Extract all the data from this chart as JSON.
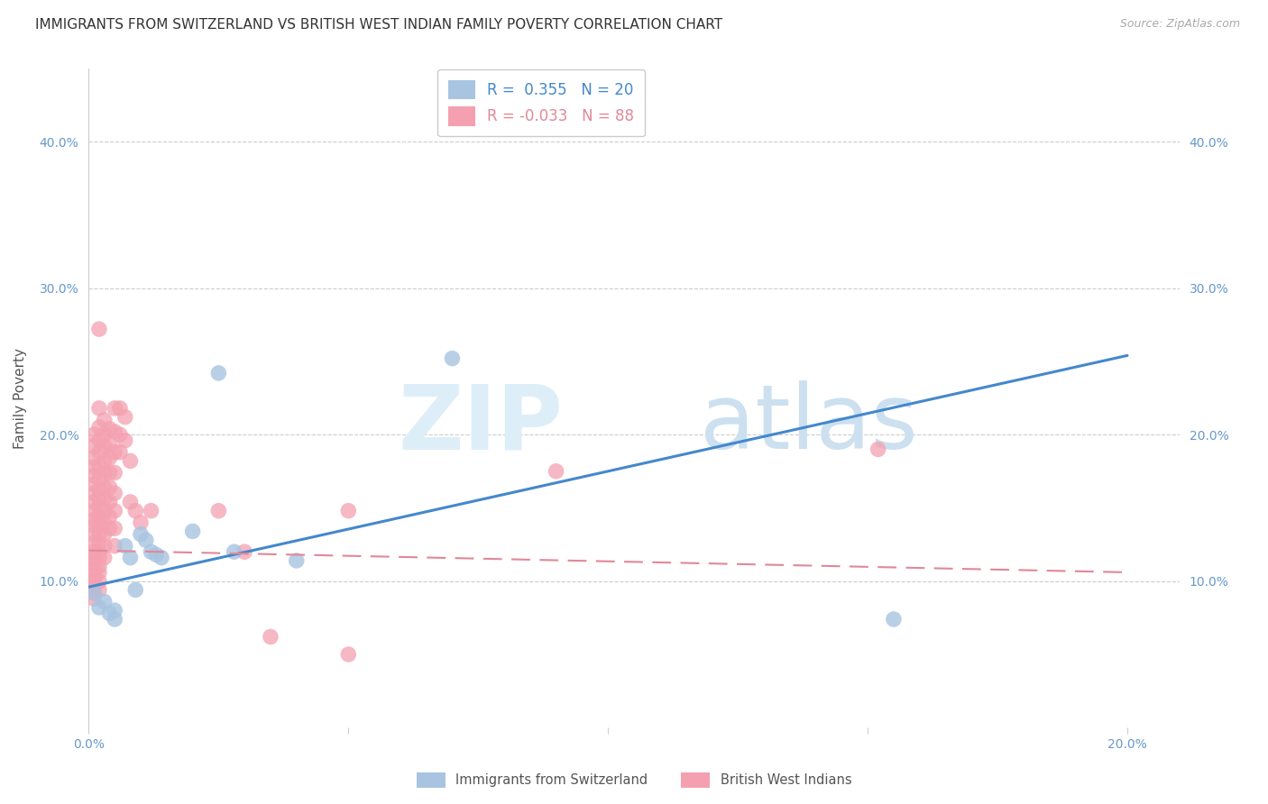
{
  "title": "IMMIGRANTS FROM SWITZERLAND VS BRITISH WEST INDIAN FAMILY POVERTY CORRELATION CHART",
  "source": "Source: ZipAtlas.com",
  "ylabel": "Family Poverty",
  "xlim": [
    0.0,
    0.21
  ],
  "ylim": [
    0.0,
    0.45
  ],
  "yticks": [
    0.1,
    0.2,
    0.3,
    0.4
  ],
  "ytick_labels": [
    "10.0%",
    "20.0%",
    "30.0%",
    "40.0%"
  ],
  "xticks": [
    0.0,
    0.05,
    0.1,
    0.15,
    0.2
  ],
  "xtick_labels": [
    "0.0%",
    "",
    "",
    "",
    "20.0%"
  ],
  "r_switzerland": 0.355,
  "n_switzerland": 20,
  "r_bwi": -0.033,
  "n_bwi": 88,
  "background_color": "#ffffff",
  "grid_color": "#cccccc",
  "tick_color": "#6699cc",
  "blue_scatter_color": "#a8c4e0",
  "pink_scatter_color": "#f4a0b0",
  "blue_line_color": "#4488cc",
  "pink_line_color": "#e08898",
  "legend_label_swiss": "Immigrants from Switzerland",
  "legend_label_bwi": "British West Indians",
  "blue_points": [
    [
      0.001,
      0.092
    ],
    [
      0.002,
      0.082
    ],
    [
      0.003,
      0.086
    ],
    [
      0.004,
      0.078
    ],
    [
      0.005,
      0.074
    ],
    [
      0.005,
      0.08
    ],
    [
      0.007,
      0.124
    ],
    [
      0.008,
      0.116
    ],
    [
      0.009,
      0.094
    ],
    [
      0.01,
      0.132
    ],
    [
      0.011,
      0.128
    ],
    [
      0.012,
      0.12
    ],
    [
      0.013,
      0.118
    ],
    [
      0.014,
      0.116
    ],
    [
      0.02,
      0.134
    ],
    [
      0.025,
      0.242
    ],
    [
      0.028,
      0.12
    ],
    [
      0.04,
      0.114
    ],
    [
      0.07,
      0.252
    ],
    [
      0.155,
      0.074
    ]
  ],
  "pink_points": [
    [
      0.001,
      0.2
    ],
    [
      0.001,
      0.192
    ],
    [
      0.001,
      0.184
    ],
    [
      0.001,
      0.178
    ],
    [
      0.001,
      0.172
    ],
    [
      0.001,
      0.166
    ],
    [
      0.001,
      0.16
    ],
    [
      0.001,
      0.154
    ],
    [
      0.001,
      0.148
    ],
    [
      0.001,
      0.142
    ],
    [
      0.001,
      0.138
    ],
    [
      0.001,
      0.132
    ],
    [
      0.001,
      0.126
    ],
    [
      0.001,
      0.12
    ],
    [
      0.001,
      0.116
    ],
    [
      0.001,
      0.112
    ],
    [
      0.001,
      0.108
    ],
    [
      0.001,
      0.104
    ],
    [
      0.001,
      0.1
    ],
    [
      0.001,
      0.096
    ],
    [
      0.001,
      0.092
    ],
    [
      0.001,
      0.088
    ],
    [
      0.002,
      0.272
    ],
    [
      0.002,
      0.218
    ],
    [
      0.002,
      0.205
    ],
    [
      0.002,
      0.196
    ],
    [
      0.002,
      0.188
    ],
    [
      0.002,
      0.178
    ],
    [
      0.002,
      0.17
    ],
    [
      0.002,
      0.162
    ],
    [
      0.002,
      0.156
    ],
    [
      0.002,
      0.15
    ],
    [
      0.002,
      0.144
    ],
    [
      0.002,
      0.138
    ],
    [
      0.002,
      0.132
    ],
    [
      0.002,
      0.126
    ],
    [
      0.002,
      0.12
    ],
    [
      0.002,
      0.116
    ],
    [
      0.002,
      0.11
    ],
    [
      0.002,
      0.106
    ],
    [
      0.002,
      0.1
    ],
    [
      0.002,
      0.094
    ],
    [
      0.003,
      0.21
    ],
    [
      0.003,
      0.2
    ],
    [
      0.003,
      0.192
    ],
    [
      0.003,
      0.182
    ],
    [
      0.003,
      0.174
    ],
    [
      0.003,
      0.164
    ],
    [
      0.003,
      0.156
    ],
    [
      0.003,
      0.148
    ],
    [
      0.003,
      0.14
    ],
    [
      0.003,
      0.132
    ],
    [
      0.003,
      0.124
    ],
    [
      0.003,
      0.116
    ],
    [
      0.004,
      0.204
    ],
    [
      0.004,
      0.194
    ],
    [
      0.004,
      0.184
    ],
    [
      0.004,
      0.174
    ],
    [
      0.004,
      0.164
    ],
    [
      0.004,
      0.154
    ],
    [
      0.004,
      0.144
    ],
    [
      0.004,
      0.136
    ],
    [
      0.005,
      0.218
    ],
    [
      0.005,
      0.202
    ],
    [
      0.005,
      0.188
    ],
    [
      0.005,
      0.174
    ],
    [
      0.005,
      0.16
    ],
    [
      0.005,
      0.148
    ],
    [
      0.005,
      0.136
    ],
    [
      0.005,
      0.124
    ],
    [
      0.006,
      0.218
    ],
    [
      0.006,
      0.2
    ],
    [
      0.006,
      0.188
    ],
    [
      0.007,
      0.212
    ],
    [
      0.007,
      0.196
    ],
    [
      0.008,
      0.182
    ],
    [
      0.008,
      0.154
    ],
    [
      0.009,
      0.148
    ],
    [
      0.01,
      0.14
    ],
    [
      0.012,
      0.148
    ],
    [
      0.025,
      0.148
    ],
    [
      0.03,
      0.12
    ],
    [
      0.05,
      0.148
    ],
    [
      0.035,
      0.062
    ],
    [
      0.05,
      0.05
    ],
    [
      0.09,
      0.175
    ],
    [
      0.152,
      0.19
    ]
  ],
  "blue_line": [
    [
      0.0,
      0.096
    ],
    [
      0.2,
      0.254
    ]
  ],
  "pink_line": [
    [
      0.0,
      0.121
    ],
    [
      0.2,
      0.106
    ]
  ]
}
